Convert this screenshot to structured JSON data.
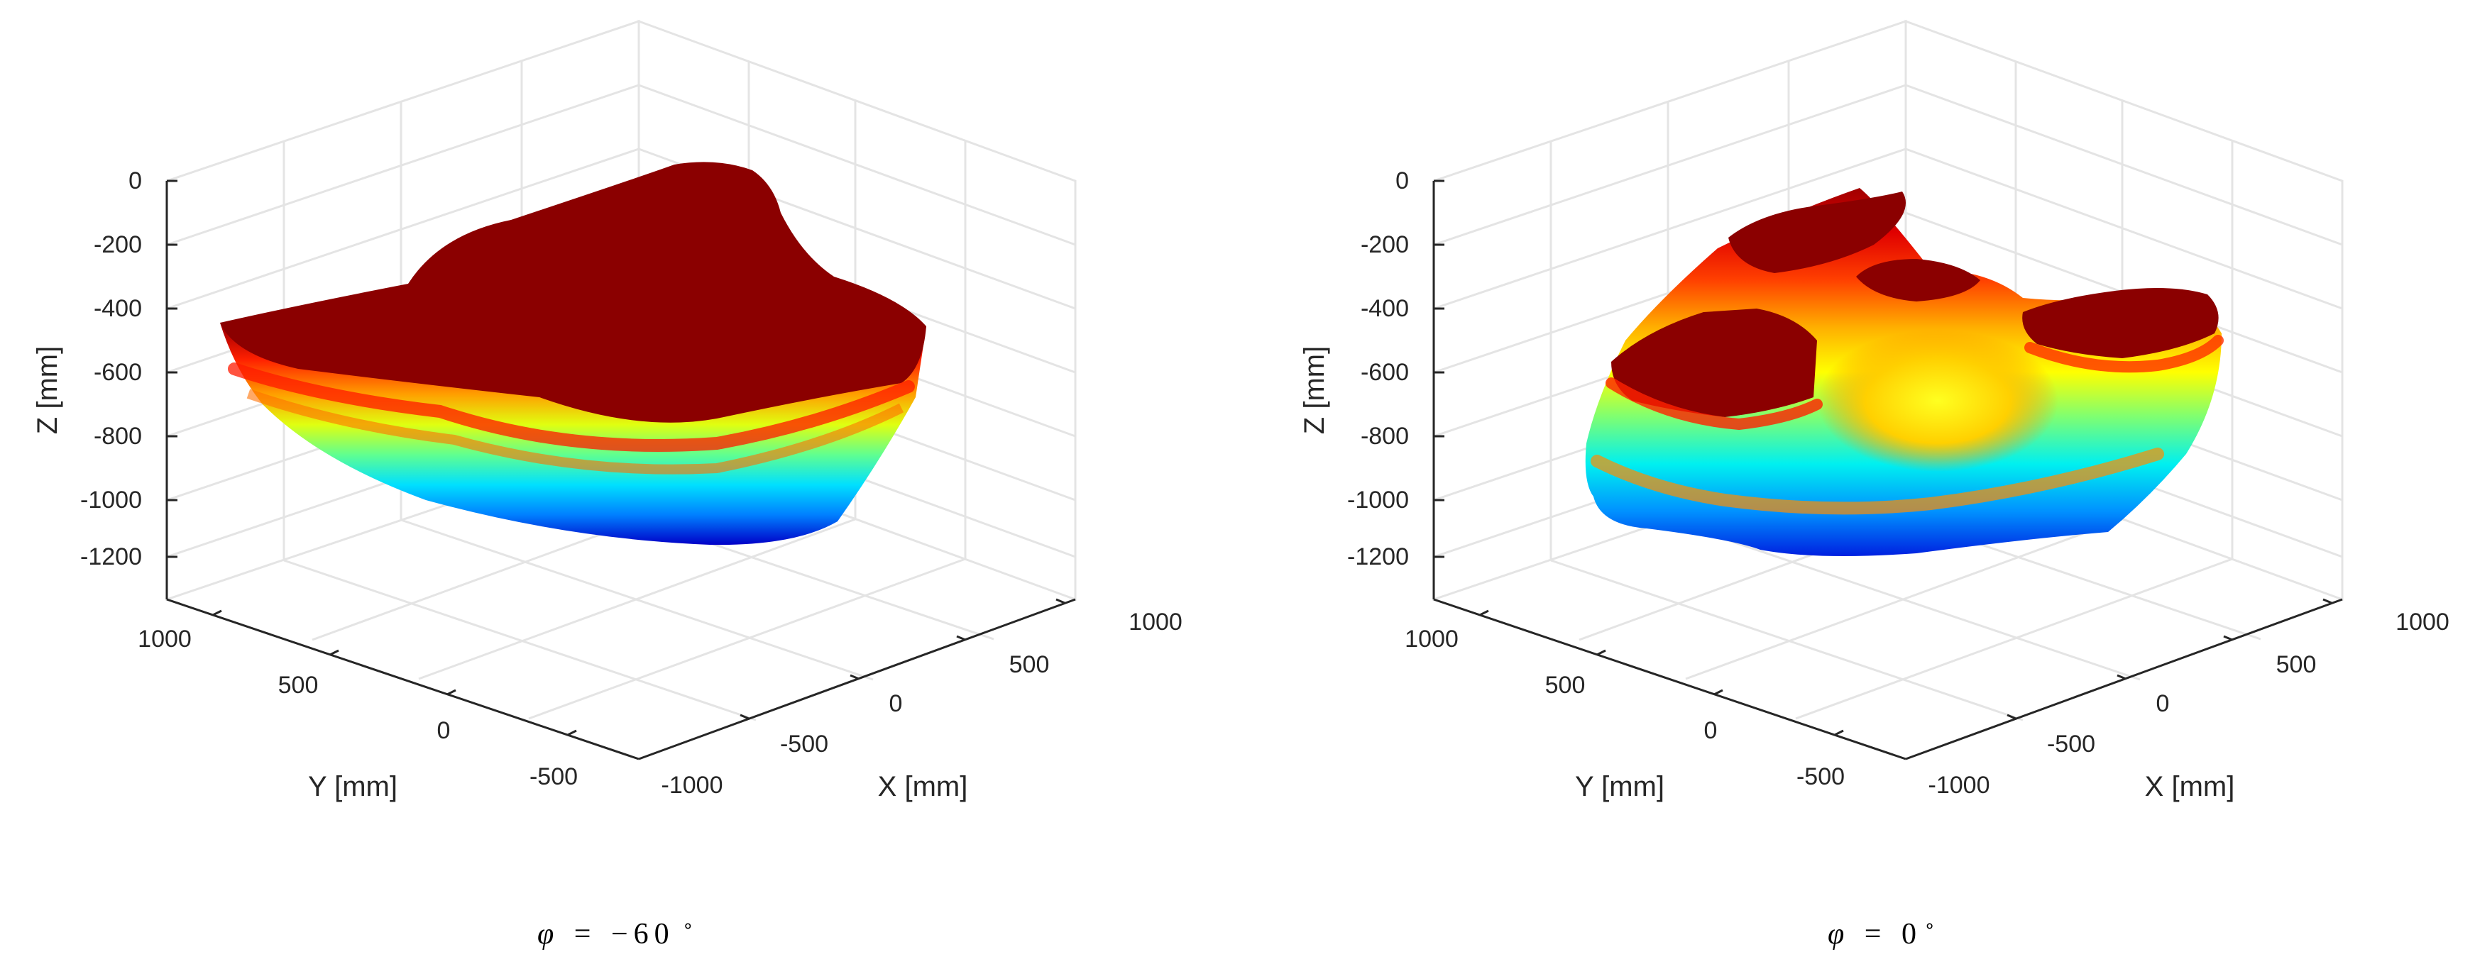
{
  "chart_data": [
    {
      "type": "scatter3d",
      "caption": {
        "symbol": "φ",
        "eq": "=",
        "value": "−60",
        "unit": "∘"
      },
      "xlabel": "X [mm]",
      "ylabel": "Y [mm]",
      "zlabel": "Z [mm]",
      "xticks": [
        "-1000",
        "-500",
        "0",
        "500",
        "1000"
      ],
      "yticks": [
        "-500",
        "0",
        "500",
        "1000"
      ],
      "zticks": [
        "0",
        "-200",
        "-400",
        "-600",
        "-800",
        "-1000",
        "-1200"
      ],
      "xlim": [
        -1000,
        1000
      ],
      "ylim": [
        -600,
        1000
      ],
      "zlim": [
        -1300,
        0
      ],
      "grid": true,
      "colormap": "jet",
      "surface_description_levels": [
        {
          "z": -1180,
          "color": "#0000cd"
        },
        {
          "z": -1050,
          "color": "#00bfff"
        },
        {
          "z": -950,
          "color": "#00ff80"
        },
        {
          "z": -850,
          "color": "#c0ff00"
        },
        {
          "z": -750,
          "color": "#ffc000"
        },
        {
          "z": -650,
          "color": "#ff2000"
        },
        {
          "z": -450,
          "color": "#8b0000"
        }
      ]
    },
    {
      "type": "scatter3d",
      "caption": {
        "symbol": "φ",
        "eq": "=",
        "value": "0",
        "unit": "∘"
      },
      "xlabel": "X [mm]",
      "ylabel": "Y [mm]",
      "zlabel": "Z [mm]",
      "xticks": [
        "-1000",
        "-500",
        "0",
        "500",
        "1000"
      ],
      "yticks": [
        "-500",
        "0",
        "500",
        "1000"
      ],
      "zticks": [
        "0",
        "-200",
        "-400",
        "-600",
        "-800",
        "-1000",
        "-1200"
      ],
      "xlim": [
        -1000,
        1000
      ],
      "ylim": [
        -600,
        1000
      ],
      "zlim": [
        -1300,
        0
      ],
      "grid": true,
      "colormap": "jet",
      "peaks": [
        {
          "name": "left-block",
          "z": -480
        },
        {
          "name": "center-top",
          "z": -120
        },
        {
          "name": "center-mid",
          "z": -380
        },
        {
          "name": "right-block",
          "z": -450
        }
      ]
    }
  ],
  "colors": {
    "dark_red": "#8b0000",
    "red": "#ff0000",
    "orange": "#ff8c00",
    "yellow": "#ffff00",
    "green": "#40ff80",
    "cyan": "#00ffff",
    "blue": "#0040ff",
    "axis": "#262626",
    "grid": "#e6e6e6"
  }
}
